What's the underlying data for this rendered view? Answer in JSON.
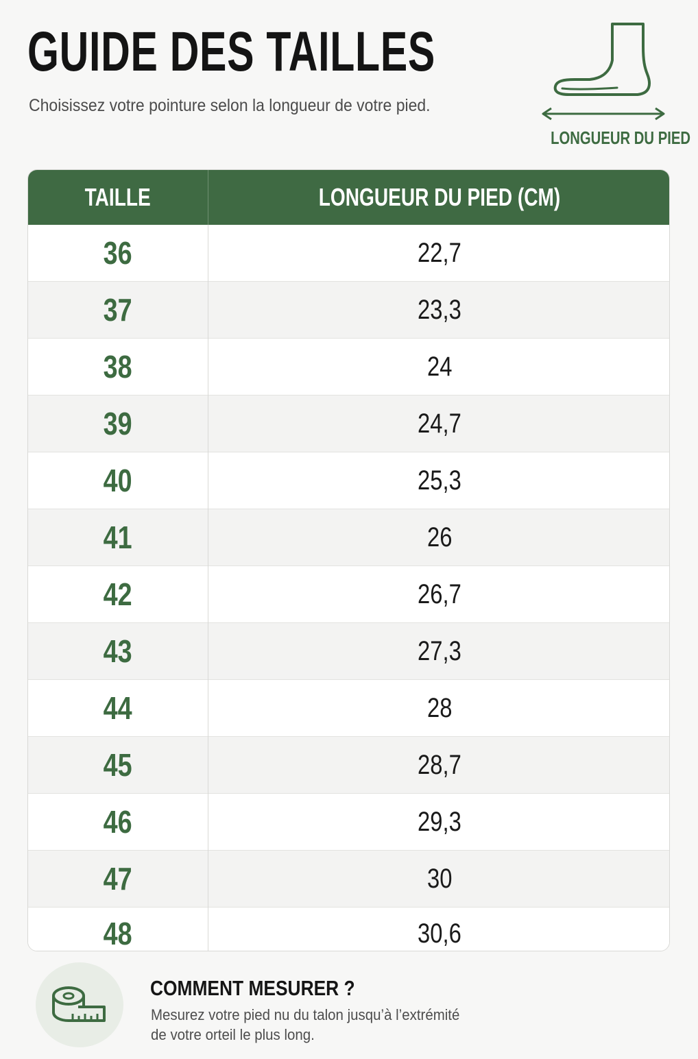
{
  "header": {
    "title": "GUIDE DES TAILLES",
    "subtitle": "Choisissez votre pointure selon la longueur de votre pied."
  },
  "illustration": {
    "icon": "foot-icon",
    "label": "LONGUEUR DU PIED"
  },
  "table": {
    "columns": [
      "TAILLE",
      "LONGUEUR DU PIED (CM)"
    ],
    "rows": [
      {
        "size": "36",
        "length": "22,7"
      },
      {
        "size": "37",
        "length": "23,3"
      },
      {
        "size": "38",
        "length": "24"
      },
      {
        "size": "39",
        "length": "24,7"
      },
      {
        "size": "40",
        "length": "25,3"
      },
      {
        "size": "41",
        "length": "26"
      },
      {
        "size": "42",
        "length": "26,7"
      },
      {
        "size": "43",
        "length": "27,3"
      },
      {
        "size": "44",
        "length": "28"
      },
      {
        "size": "45",
        "length": "28,7"
      },
      {
        "size": "46",
        "length": "29,3"
      },
      {
        "size": "47",
        "length": "30"
      },
      {
        "size": "48",
        "length": "30,6"
      }
    ]
  },
  "tip": {
    "icon": "measuring-tape-icon",
    "title": "COMMENT MESURER ?",
    "text_line1": "Mesurez votre pied nu du talon jusqu’à l’extrémité",
    "text_line2": "de votre orteil le plus long."
  },
  "colors": {
    "accent": "#3f6a43",
    "accent_text": "#3d6b41",
    "row_alt": "#f3f3f2",
    "badge_bg": "#e8ede6"
  }
}
